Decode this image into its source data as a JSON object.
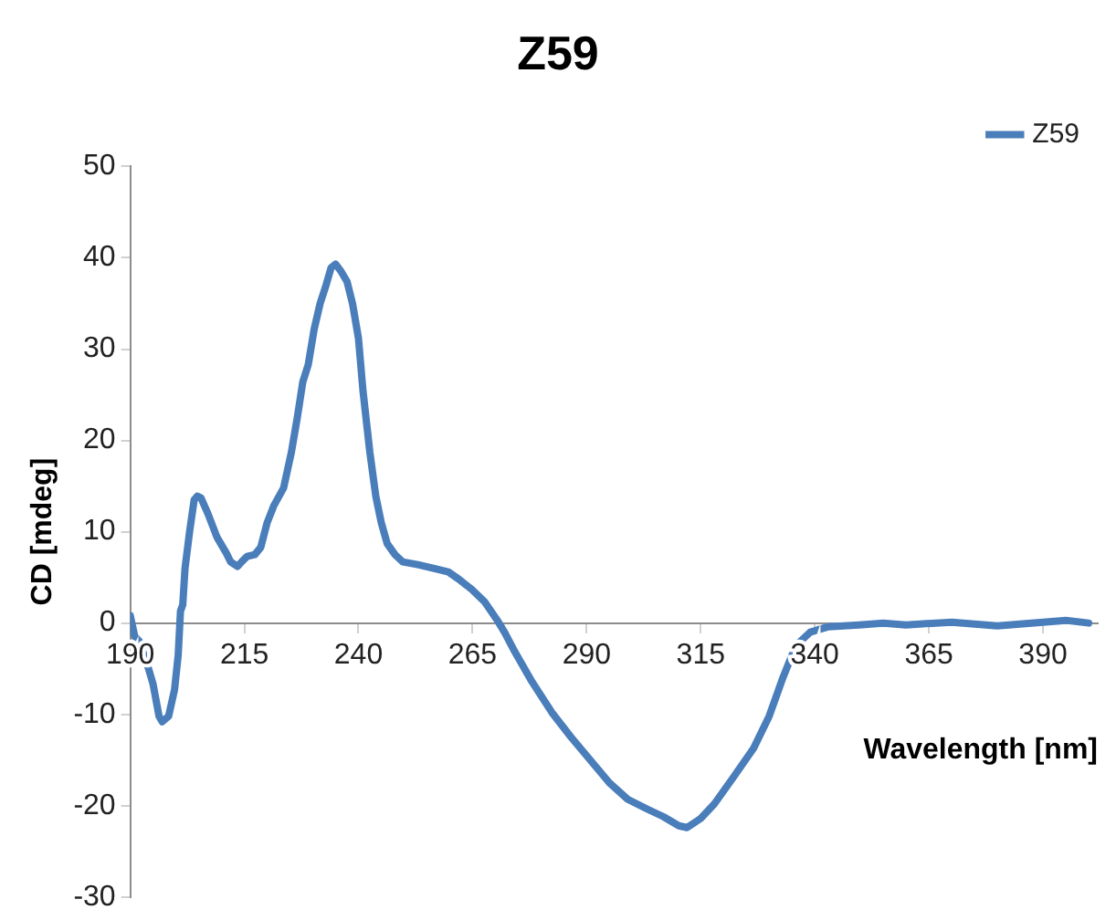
{
  "chart_data": {
    "type": "line",
    "title": "Z59",
    "xlabel": "Wavelength [nm]",
    "ylabel": "CD [mdeg]",
    "x": [
      190,
      191,
      192,
      193,
      194,
      195,
      196.3,
      197,
      198.4,
      199.7,
      200.5,
      201,
      201.5,
      202,
      203,
      204,
      204.7,
      205.5,
      207,
      209,
      211,
      212,
      213.5,
      214.4,
      215.6,
      217.3,
      218.6,
      220,
      221.5,
      223.6,
      225.3,
      226.6,
      227.8,
      229,
      230.3,
      231.6,
      232.9,
      234,
      235,
      236.2,
      237.5,
      238.7,
      240,
      241,
      242.5,
      243.8,
      245,
      246.3,
      248,
      249.7,
      253,
      256.4,
      259.7,
      262,
      264.8,
      267.7,
      270.3,
      272,
      274,
      278,
      282.4,
      286.6,
      290.8,
      295,
      299,
      303.4,
      306.8,
      310.2,
      312,
      315,
      318,
      322,
      326.6,
      330,
      333,
      335.8,
      339,
      343,
      349.7,
      355,
      360,
      370,
      380,
      390,
      395,
      400
    ],
    "series": [
      {
        "name": "Z59",
        "color": "#4a7ebb",
        "values": [
          0.8,
          -1.5,
          -2,
          -3.5,
          -5,
          -6.7,
          -10.2,
          -10.8,
          -10.2,
          -7.3,
          -3.5,
          1.3,
          2,
          6,
          10,
          13.5,
          13.9,
          13.7,
          12,
          9.4,
          7.7,
          6.7,
          6.2,
          6.7,
          7.3,
          7.5,
          8.3,
          11,
          12.9,
          14.8,
          18.7,
          22.5,
          26.4,
          28.3,
          32.2,
          35,
          37,
          38.9,
          39.3,
          38.5,
          37.4,
          35,
          31.2,
          25.4,
          18.7,
          13.9,
          11,
          8.7,
          7.5,
          6.7,
          6.4,
          6,
          5.6,
          4.8,
          3.7,
          2.3,
          0.4,
          -1,
          -2.9,
          -6.4,
          -9.8,
          -12.5,
          -15,
          -17.5,
          -19.3,
          -20.4,
          -21.2,
          -22.2,
          -22.4,
          -21.4,
          -19.8,
          -17,
          -13.7,
          -10.2,
          -6,
          -2.5,
          -1,
          -0.4,
          -0.2,
          0,
          -0.2,
          0.1,
          -0.3,
          0.1,
          0.3,
          0
        ]
      }
    ],
    "xlim": [
      190,
      402
    ],
    "xticks": [
      190,
      215,
      240,
      265,
      290,
      315,
      340,
      365,
      390
    ],
    "ylim": [
      -30,
      50
    ],
    "yticks": [
      -30,
      -20,
      -10,
      0,
      10,
      20,
      30,
      40,
      50
    ],
    "grid": false,
    "legend": "top right",
    "marker": "none",
    "line_style": "solid"
  }
}
